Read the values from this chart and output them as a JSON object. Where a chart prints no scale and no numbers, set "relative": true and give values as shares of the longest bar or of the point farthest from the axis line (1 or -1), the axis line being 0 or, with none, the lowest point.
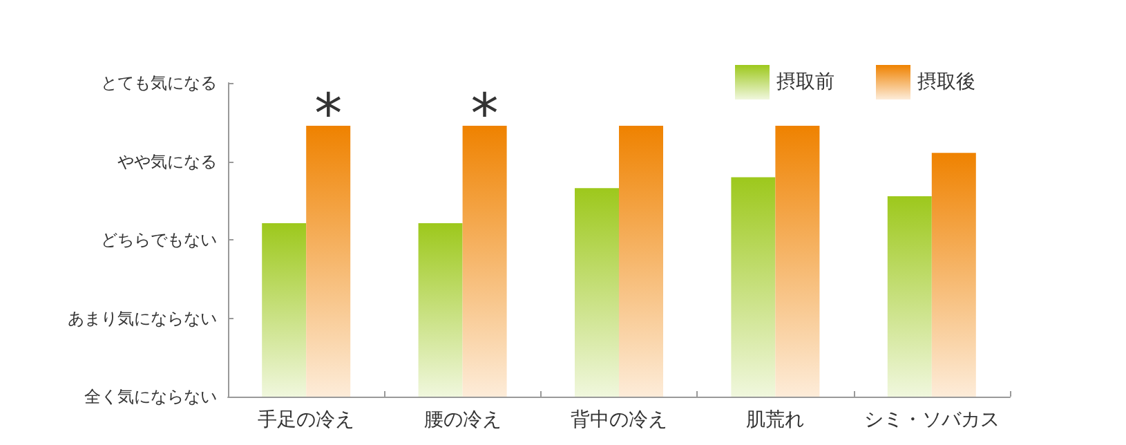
{
  "chart_data": {
    "type": "bar",
    "categories": [
      "手足の冷え",
      "腰の冷え",
      "背中の冷え",
      "肌荒れ",
      "シミ・ソバカス"
    ],
    "series": [
      {
        "name": "摂取前",
        "color": "#9dc81c",
        "values": [
          0.64,
          0.64,
          0.77,
          0.81,
          0.74
        ]
      },
      {
        "name": "摂取後",
        "color": "#ef8200",
        "values": [
          1,
          1,
          1,
          1,
          0.9
        ]
      }
    ],
    "relative": true,
    "annotations": [
      "とても気になる",
      "やや気になる",
      "どちらでもない",
      "あまり気にならない",
      "全く気にならない",
      {
        "text": "*",
        "x": "手足の冷え",
        "y": 1
      },
      {
        "text": "*",
        "x": "腰の冷え",
        "y": 1
      }
    ],
    "legend": "top right"
  }
}
